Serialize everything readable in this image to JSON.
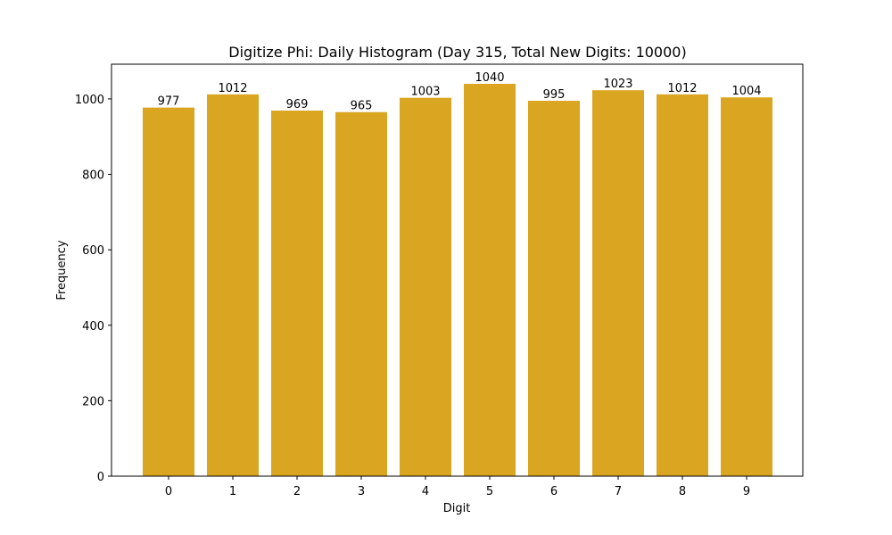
{
  "chart_data": {
    "type": "bar",
    "title": "Digitize Phi: Daily Histogram (Day 315, Total New Digits: 10000)",
    "xlabel": "Digit",
    "ylabel": "Frequency",
    "categories": [
      "0",
      "1",
      "2",
      "3",
      "4",
      "5",
      "6",
      "7",
      "8",
      "9"
    ],
    "values": [
      977,
      1012,
      969,
      965,
      1003,
      1040,
      995,
      1023,
      1012,
      1004
    ],
    "ylim": [
      0,
      1092
    ],
    "yticks": [
      0,
      200,
      400,
      600,
      800,
      1000
    ],
    "bar_color": "#DAA520",
    "grid": false,
    "legend": "none"
  }
}
